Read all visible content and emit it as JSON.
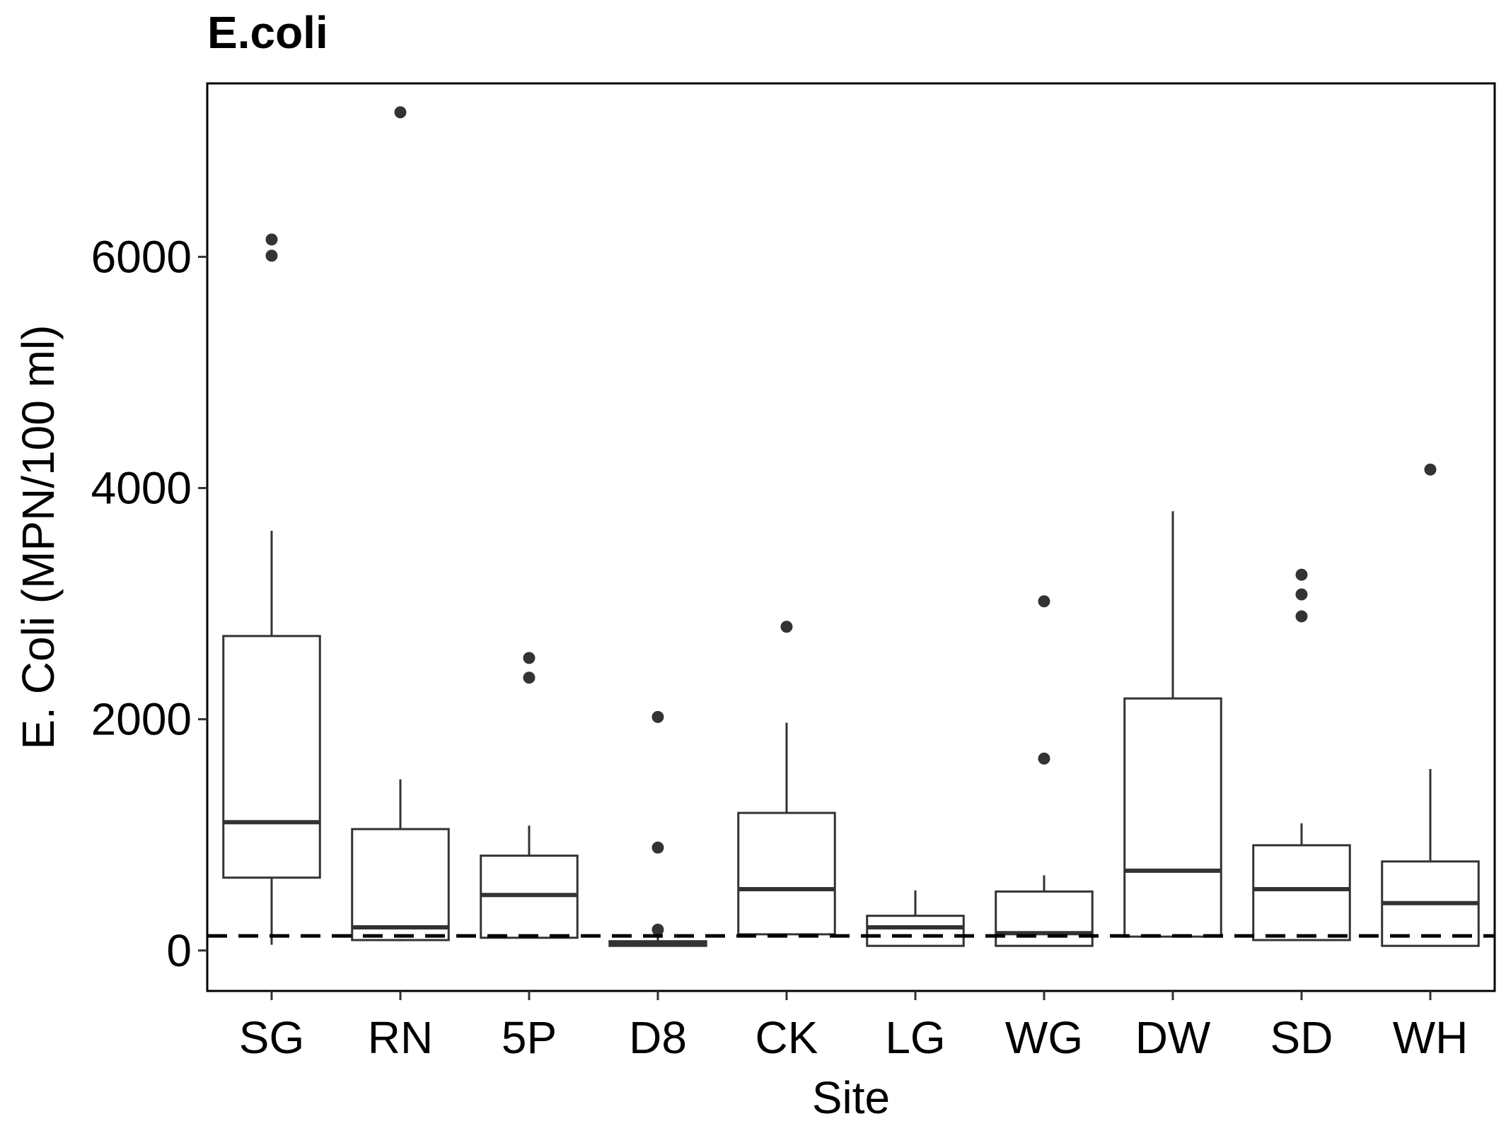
{
  "chart_data": {
    "type": "boxplot",
    "title": "E.coli",
    "xlabel": "Site",
    "ylabel": "E. Coli (MPN/100 ml)",
    "ylim": [
      -350,
      7500
    ],
    "yticks": [
      0,
      2000,
      4000,
      6000
    ],
    "grid": false,
    "reference_line": {
      "value": 126,
      "style": "dashed"
    },
    "categories": [
      "SG",
      "RN",
      "5P",
      "D8",
      "CK",
      "LG",
      "WG",
      "DW",
      "SD",
      "WH"
    ],
    "boxes": [
      {
        "site": "SG",
        "whisker_low": 50,
        "q1": 630,
        "median": 1110,
        "q3": 2720,
        "whisker_high": 3630,
        "outliers": [
          6010,
          6150
        ]
      },
      {
        "site": "RN",
        "whisker_low": 80,
        "q1": 90,
        "median": 200,
        "q3": 1050,
        "whisker_high": 1480,
        "outliers": [
          7250
        ]
      },
      {
        "site": "5P",
        "whisker_low": 110,
        "q1": 110,
        "median": 480,
        "q3": 820,
        "whisker_high": 1080,
        "outliers": [
          2360,
          2530
        ]
      },
      {
        "site": "D8",
        "whisker_low": 40,
        "q1": 40,
        "median": 60,
        "q3": 80,
        "whisker_high": 120,
        "outliers": [
          180,
          890,
          2020
        ]
      },
      {
        "site": "CK",
        "whisker_low": 140,
        "q1": 140,
        "median": 530,
        "q3": 1190,
        "whisker_high": 1970,
        "outliers": [
          2800
        ]
      },
      {
        "site": "LG",
        "whisker_low": 40,
        "q1": 40,
        "median": 200,
        "q3": 300,
        "whisker_high": 520,
        "outliers": []
      },
      {
        "site": "WG",
        "whisker_low": 40,
        "q1": 40,
        "median": 150,
        "q3": 510,
        "whisker_high": 650,
        "outliers": [
          1660,
          3020
        ]
      },
      {
        "site": "DW",
        "whisker_low": 120,
        "q1": 120,
        "median": 690,
        "q3": 2180,
        "whisker_high": 3800,
        "outliers": []
      },
      {
        "site": "SD",
        "whisker_low": 90,
        "q1": 90,
        "median": 530,
        "q3": 910,
        "whisker_high": 1100,
        "outliers": [
          2890,
          3080,
          3250
        ]
      },
      {
        "site": "WH",
        "whisker_low": 40,
        "q1": 40,
        "median": 410,
        "q3": 770,
        "whisker_high": 1570,
        "outliers": [
          4160
        ]
      }
    ]
  }
}
